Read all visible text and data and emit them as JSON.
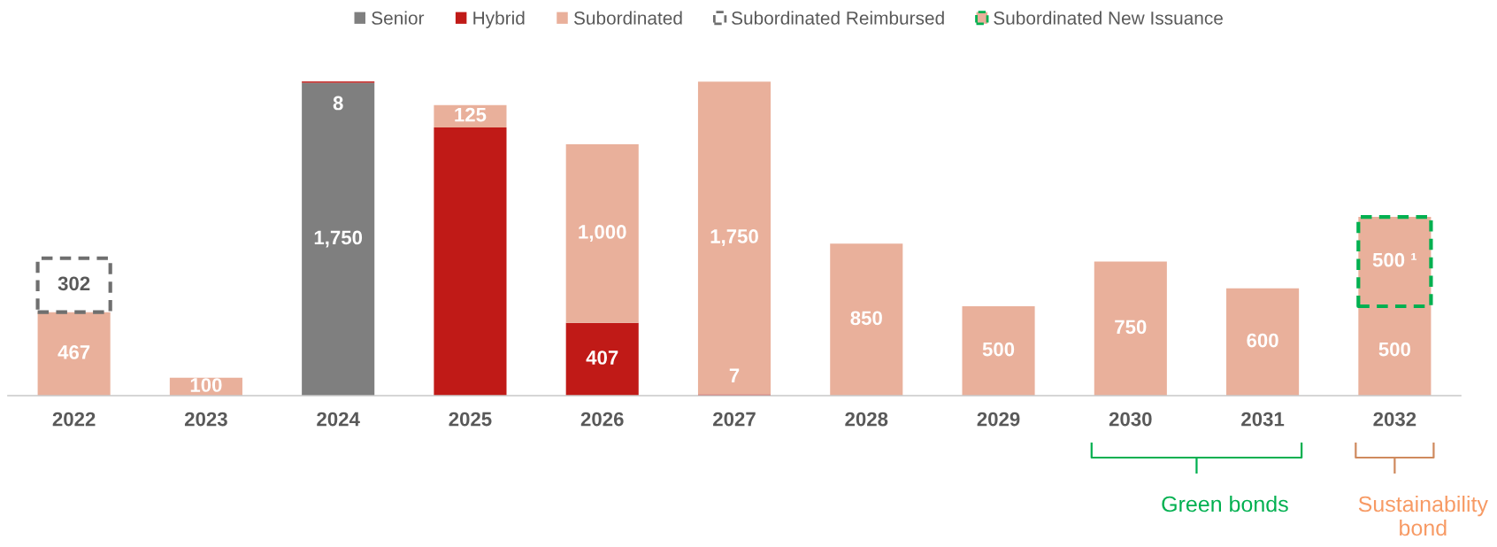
{
  "chart_data": {
    "type": "bar",
    "stacked": true,
    "legend": "top",
    "tick_labels": "x",
    "categories": [
      "2022",
      "2023",
      "2024",
      "2025",
      "2026",
      "2027",
      "2028",
      "2029",
      "2030",
      "2031",
      "2032"
    ],
    "series": [
      {
        "name": "Senior",
        "color": "#7f7f7f",
        "values": [
          null,
          null,
          1750,
          null,
          null,
          null,
          null,
          null,
          null,
          null,
          null
        ],
        "value_labels": [
          null,
          null,
          "1,750",
          null,
          null,
          null,
          null,
          null,
          null,
          null,
          null
        ]
      },
      {
        "name": "Hybrid",
        "color": "#c01a17",
        "values": [
          null,
          null,
          8,
          1500,
          407,
          7,
          null,
          null,
          null,
          null,
          null
        ],
        "value_labels": [
          null,
          null,
          "8",
          null,
          "407",
          "7",
          null,
          null,
          null,
          null,
          null
        ]
      },
      {
        "name": "Subordinated",
        "color": "#e9b09b",
        "values": [
          467,
          100,
          null,
          125,
          1000,
          1750,
          850,
          500,
          750,
          600,
          500
        ],
        "value_labels": [
          "467",
          "100",
          null,
          "125",
          "1,000",
          "1,750",
          "850",
          "500",
          "750",
          "600",
          "500"
        ]
      },
      {
        "name": "Subordinated Reimbursed",
        "color": "#6f6f6f",
        "line_style": "dashed",
        "values": [
          302,
          null,
          null,
          null,
          null,
          null,
          null,
          null,
          null,
          null,
          null
        ],
        "value_labels": [
          "302",
          null,
          null,
          null,
          null,
          null,
          null,
          null,
          null,
          null,
          null
        ]
      },
      {
        "name": "Subordinated New Issuance",
        "color": "#00b050",
        "line_style": "dashed",
        "colors": [
          null,
          null,
          null,
          null,
          null,
          null,
          null,
          null,
          null,
          null,
          "#e9b09b"
        ],
        "values": [
          null,
          null,
          null,
          null,
          null,
          null,
          null,
          null,
          null,
          null,
          500
        ],
        "value_labels": [
          null,
          null,
          null,
          null,
          null,
          null,
          null,
          null,
          null,
          null,
          "500 ¹"
        ]
      }
    ],
    "annotations": [
      "Green bonds",
      "Sustainability bond"
    ]
  }
}
